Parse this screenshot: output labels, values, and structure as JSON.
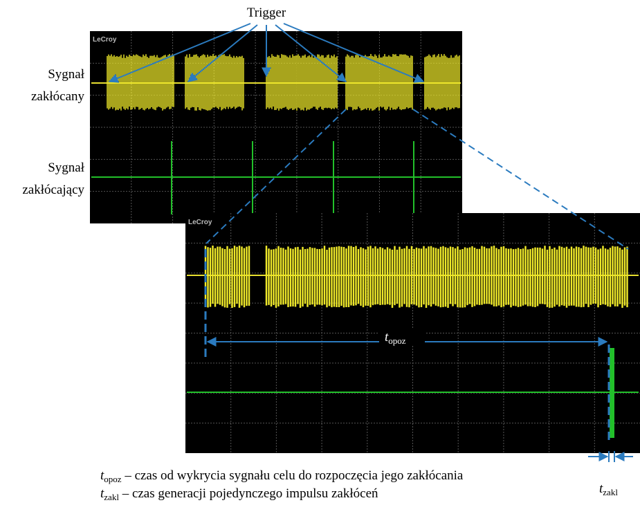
{
  "trigger_label": "Trigger",
  "signal_labels": [
    [
      "Sygnał",
      "zakłócany"
    ],
    [
      "Sygnał",
      "zakłócający"
    ]
  ],
  "scope_brand": [
    "LeCroy",
    "LeCroy"
  ],
  "annotations": {
    "t_opoz": {
      "symbol": "t",
      "subscript": "opoz"
    },
    "t_zakl": {
      "symbol": "t",
      "subscript": "zakl"
    }
  },
  "legend": [
    {
      "symbol": "t",
      "subscript": "opoz",
      "text": " – czas od wykrycia sygnału celu do rozpoczęcia jego zakłócania"
    },
    {
      "symbol": "t",
      "subscript": "zakl",
      "text": " – czas generacji pojedynczego impulsu zakłóceń"
    }
  ]
}
